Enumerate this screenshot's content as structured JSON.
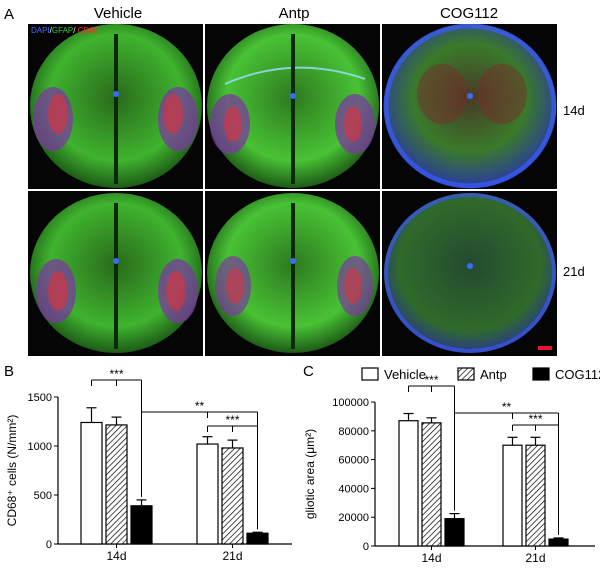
{
  "panel_a": {
    "letter": "A",
    "columns": [
      "Vehicle",
      "Antp",
      "COG112"
    ],
    "rows": [
      "14d",
      "21d"
    ],
    "stain_labels": [
      {
        "text": "DAPI",
        "color": "#4a6cff"
      },
      {
        "text": "/",
        "color": "#ffffff"
      },
      {
        "text": "GFAP",
        "color": "#39c43a"
      },
      {
        "text": "/",
        "color": "#ffffff"
      },
      {
        "text": " CD68",
        "color": "#ff3030"
      }
    ]
  },
  "legend": [
    "Vehicle",
    "Antp",
    "COG112"
  ],
  "chart_data": [
    {
      "type": "bar",
      "panel": "B",
      "categories": [
        "14d",
        "21d"
      ],
      "ylabel": "CD68⁺ cells (N/mm²)",
      "ylim": [
        0,
        1500
      ],
      "yticks": [
        0,
        500,
        1000,
        1500
      ],
      "series": [
        {
          "name": "Vehicle",
          "values": [
            1240,
            1020
          ],
          "errors": [
            150,
            75
          ]
        },
        {
          "name": "Antp",
          "values": [
            1215,
            980
          ],
          "errors": [
            80,
            80
          ]
        },
        {
          "name": "COG112",
          "values": [
            390,
            110
          ],
          "errors": [
            60,
            10
          ]
        }
      ],
      "annotations": [
        "***",
        "**",
        "***"
      ]
    },
    {
      "type": "bar",
      "panel": "C",
      "categories": [
        "14d",
        "21d"
      ],
      "ylabel": "gliotic area (μm²)",
      "ylim": [
        0,
        100000
      ],
      "yticks": [
        0,
        20000,
        40000,
        60000,
        80000,
        100000
      ],
      "series": [
        {
          "name": "Vehicle",
          "values": [
            87000,
            70000
          ],
          "errors": [
            5000,
            5500
          ]
        },
        {
          "name": "Antp",
          "values": [
            85500,
            70000
          ],
          "errors": [
            3500,
            5500
          ]
        },
        {
          "name": "COG112",
          "values": [
            19000,
            4800
          ],
          "errors": [
            3500,
            800
          ]
        }
      ],
      "annotations": [
        "***",
        "**",
        "***"
      ]
    }
  ]
}
